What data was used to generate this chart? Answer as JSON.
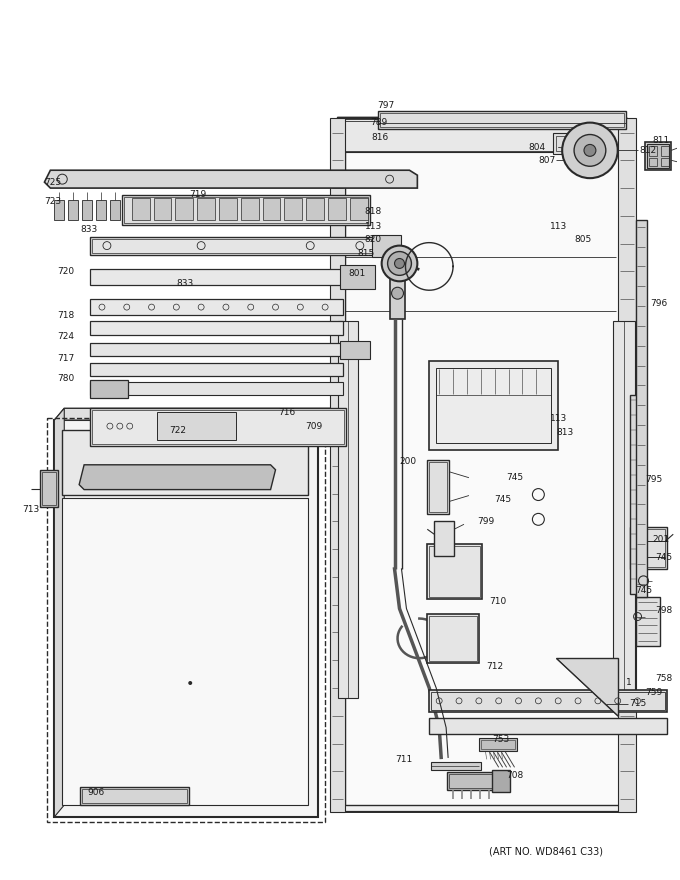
{
  "art_no": "(ART NO. WD8461 C33)",
  "bg": "#ffffff",
  "lc": "#2a2a2a",
  "tc": "#1a1a1a",
  "fw": 6.8,
  "fh": 8.8,
  "dpi": 100
}
